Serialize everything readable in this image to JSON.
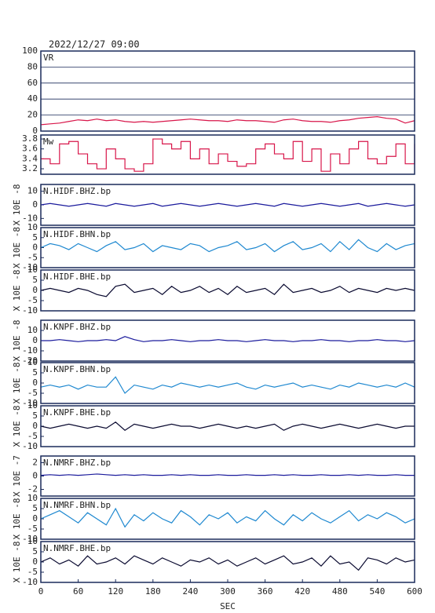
{
  "title": "2022/12/27 09:00",
  "chart_data": [
    {
      "type": "line",
      "label": "VR",
      "color": "#d8164a",
      "grid": true,
      "xlim": [
        0,
        600
      ],
      "ylim": [
        0,
        100
      ],
      "yticks": [
        0,
        20,
        40,
        60,
        80,
        100
      ],
      "x": [
        0,
        15,
        30,
        45,
        60,
        75,
        90,
        105,
        120,
        135,
        150,
        165,
        180,
        195,
        210,
        225,
        240,
        255,
        270,
        285,
        300,
        315,
        330,
        345,
        360,
        375,
        390,
        405,
        420,
        435,
        450,
        465,
        480,
        495,
        510,
        525,
        540,
        555,
        570,
        585,
        600
      ],
      "values": [
        8,
        9,
        10,
        12,
        14,
        13,
        15,
        13,
        14,
        12,
        11,
        12,
        11,
        12,
        13,
        14,
        15,
        14,
        13,
        13,
        12,
        14,
        13,
        13,
        12,
        11,
        14,
        15,
        13,
        12,
        12,
        11,
        13,
        14,
        16,
        17,
        18,
        16,
        15,
        10,
        13
      ]
    },
    {
      "type": "line",
      "label": "Mw",
      "color": "#d8164a",
      "drawstyle": "steps",
      "xlim": [
        0,
        600
      ],
      "ylim": [
        3.09,
        3.88
      ],
      "yticks": [
        3.2,
        3.4,
        3.6,
        3.8
      ],
      "x": [
        0,
        15,
        30,
        45,
        60,
        75,
        90,
        105,
        120,
        135,
        150,
        165,
        180,
        195,
        210,
        225,
        240,
        255,
        270,
        285,
        300,
        315,
        330,
        345,
        360,
        375,
        390,
        405,
        420,
        435,
        450,
        465,
        480,
        495,
        510,
        525,
        540,
        555,
        570,
        585,
        600
      ],
      "values": [
        3.4,
        3.3,
        3.7,
        3.75,
        3.5,
        3.3,
        3.2,
        3.6,
        3.4,
        3.2,
        3.15,
        3.3,
        3.8,
        3.7,
        3.6,
        3.75,
        3.4,
        3.6,
        3.3,
        3.5,
        3.35,
        3.25,
        3.3,
        3.6,
        3.7,
        3.5,
        3.4,
        3.75,
        3.35,
        3.6,
        3.15,
        3.5,
        3.3,
        3.6,
        3.75,
        3.4,
        3.3,
        3.45,
        3.7,
        3.3,
        3.7
      ]
    },
    {
      "type": "line",
      "label": "N.HIDF.BHZ.bp",
      "ylabel": "X 10E -8",
      "color": "#1a1a9c",
      "xlim": [
        0,
        600
      ],
      "ylim": [
        -15,
        15
      ],
      "yticks": [
        10,
        0,
        -10
      ],
      "x": [
        0,
        15,
        30,
        45,
        60,
        75,
        90,
        105,
        120,
        135,
        150,
        165,
        180,
        195,
        210,
        225,
        240,
        255,
        270,
        285,
        300,
        315,
        330,
        345,
        360,
        375,
        390,
        405,
        420,
        435,
        450,
        465,
        480,
        495,
        510,
        525,
        540,
        555,
        570,
        585,
        600
      ],
      "values": [
        0,
        1,
        0,
        -1,
        0,
        1,
        0,
        -1,
        1,
        0,
        -1,
        0,
        1,
        -1,
        0,
        1,
        0,
        -1,
        0,
        1,
        0,
        -1,
        0,
        1,
        0,
        -1,
        1,
        0,
        -1,
        0,
        1,
        0,
        -1,
        0,
        1,
        -1,
        0,
        1,
        0,
        -1,
        0
      ]
    },
    {
      "type": "line",
      "label": "N.HIDF.BHN.bp",
      "ylabel": "X 10E -8",
      "color": "#1e88d0",
      "xlim": [
        0,
        600
      ],
      "ylim": [
        -10,
        10
      ],
      "yticks": [
        10,
        5,
        0,
        -5,
        -10
      ],
      "x": [
        0,
        15,
        30,
        45,
        60,
        75,
        90,
        105,
        120,
        135,
        150,
        165,
        180,
        195,
        210,
        225,
        240,
        255,
        270,
        285,
        300,
        315,
        330,
        345,
        360,
        375,
        390,
        405,
        420,
        435,
        450,
        465,
        480,
        495,
        510,
        525,
        540,
        555,
        570,
        585,
        600
      ],
      "values": [
        0,
        2,
        1,
        -1,
        2,
        0,
        -2,
        1,
        3,
        -1,
        0,
        2,
        -2,
        1,
        0,
        -1,
        2,
        1,
        -2,
        0,
        1,
        3,
        -1,
        0,
        2,
        -2,
        1,
        3,
        -1,
        0,
        2,
        -2,
        3,
        -1,
        4,
        0,
        -2,
        2,
        -1,
        1,
        2
      ]
    },
    {
      "type": "line",
      "label": "N.HIDF.BHE.bp",
      "ylabel": "X 10E -8",
      "color": "#0a0a30",
      "xlim": [
        0,
        600
      ],
      "ylim": [
        -10,
        10
      ],
      "yticks": [
        10,
        5,
        0,
        -5,
        -10
      ],
      "x": [
        0,
        15,
        30,
        45,
        60,
        75,
        90,
        105,
        120,
        135,
        150,
        165,
        180,
        195,
        210,
        225,
        240,
        255,
        270,
        285,
        300,
        315,
        330,
        345,
        360,
        375,
        390,
        405,
        420,
        435,
        450,
        465,
        480,
        495,
        510,
        525,
        540,
        555,
        570,
        585,
        600
      ],
      "values": [
        0,
        1,
        0,
        -1,
        1,
        0,
        -2,
        -3,
        2,
        3,
        -1,
        0,
        1,
        -2,
        2,
        -1,
        0,
        2,
        -1,
        1,
        -2,
        2,
        -1,
        0,
        1,
        -2,
        3,
        -1,
        0,
        1,
        -1,
        0,
        2,
        -1,
        1,
        0,
        -1,
        1,
        0,
        1,
        0
      ]
    },
    {
      "type": "line",
      "label": "N.KNPF.BHZ.bp",
      "ylabel": "X 10E -8",
      "color": "#1a1a9c",
      "xlim": [
        0,
        600
      ],
      "ylim": [
        -20,
        20
      ],
      "yticks": [
        10,
        0,
        -10,
        -20
      ],
      "x": [
        0,
        15,
        30,
        45,
        60,
        75,
        90,
        105,
        120,
        135,
        150,
        165,
        180,
        195,
        210,
        225,
        240,
        255,
        270,
        285,
        300,
        315,
        330,
        345,
        360,
        375,
        390,
        405,
        420,
        435,
        450,
        465,
        480,
        495,
        510,
        525,
        540,
        555,
        570,
        585,
        600
      ],
      "values": [
        0,
        0,
        1,
        0,
        -1,
        0,
        0,
        1,
        0,
        4,
        1,
        -1,
        0,
        0,
        1,
        0,
        -1,
        0,
        0,
        1,
        0,
        0,
        -1,
        0,
        1,
        0,
        0,
        -1,
        0,
        0,
        1,
        0,
        0,
        -1,
        0,
        0,
        1,
        0,
        0,
        -1,
        0
      ]
    },
    {
      "type": "line",
      "label": "N.KNPF.BHN.bp",
      "ylabel": "X 10E -8",
      "color": "#1e88d0",
      "xlim": [
        0,
        600
      ],
      "ylim": [
        -10,
        10
      ],
      "yticks": [
        10,
        5,
        0,
        -5,
        -10
      ],
      "x": [
        0,
        15,
        30,
        45,
        60,
        75,
        90,
        105,
        120,
        135,
        150,
        165,
        180,
        195,
        210,
        225,
        240,
        255,
        270,
        285,
        300,
        315,
        330,
        345,
        360,
        375,
        390,
        405,
        420,
        435,
        450,
        465,
        480,
        495,
        510,
        525,
        540,
        555,
        570,
        585,
        600
      ],
      "values": [
        -2,
        -1,
        -2,
        -1,
        -3,
        -1,
        -2,
        -2,
        3,
        -5,
        -1,
        -2,
        -3,
        -1,
        -2,
        0,
        -1,
        -2,
        -1,
        -2,
        -1,
        0,
        -2,
        -3,
        -1,
        -2,
        -1,
        0,
        -2,
        -1,
        -2,
        -3,
        -1,
        -2,
        0,
        -1,
        -2,
        -1,
        -2,
        0,
        -2
      ]
    },
    {
      "type": "line",
      "label": "N.KNPF.BHE.bp",
      "ylabel": "X 10E -8",
      "color": "#0a0a30",
      "xlim": [
        0,
        600
      ],
      "ylim": [
        -10,
        10
      ],
      "yticks": [
        10,
        5,
        0,
        -5,
        -10
      ],
      "x": [
        0,
        15,
        30,
        45,
        60,
        75,
        90,
        105,
        120,
        135,
        150,
        165,
        180,
        195,
        210,
        225,
        240,
        255,
        270,
        285,
        300,
        315,
        330,
        345,
        360,
        375,
        390,
        405,
        420,
        435,
        450,
        465,
        480,
        495,
        510,
        525,
        540,
        555,
        570,
        585,
        600
      ],
      "values": [
        0,
        -1,
        0,
        1,
        0,
        -1,
        0,
        -1,
        2,
        -2,
        1,
        0,
        -1,
        0,
        1,
        0,
        0,
        -1,
        0,
        1,
        0,
        -1,
        0,
        -1,
        0,
        1,
        -2,
        0,
        1,
        0,
        -1,
        0,
        1,
        0,
        -1,
        0,
        1,
        0,
        -1,
        0,
        0
      ]
    },
    {
      "type": "line",
      "label": "N.NMRF.BHZ.bp",
      "ylabel": "X 10E -7",
      "color": "#1a1a9c",
      "xlim": [
        0,
        600
      ],
      "ylim": [
        -3,
        3
      ],
      "yticks": [
        2,
        0,
        -2
      ],
      "x": [
        0,
        15,
        30,
        45,
        60,
        75,
        90,
        105,
        120,
        135,
        150,
        165,
        180,
        195,
        210,
        225,
        240,
        255,
        270,
        285,
        300,
        315,
        330,
        345,
        360,
        375,
        390,
        405,
        420,
        435,
        450,
        465,
        480,
        495,
        510,
        525,
        540,
        555,
        570,
        585,
        600
      ],
      "values": [
        0.1,
        0.2,
        0.1,
        0.2,
        0.1,
        0.2,
        0.3,
        0.2,
        0.1,
        0.2,
        0.1,
        0.2,
        0.1,
        0.1,
        0.2,
        0.1,
        0.2,
        0.1,
        0.1,
        0.2,
        0.1,
        0.1,
        0.2,
        0.1,
        0.1,
        0.2,
        0.1,
        0.2,
        0.1,
        0.1,
        0.2,
        0.1,
        0.1,
        0.2,
        0.1,
        0.2,
        0.1,
        0.1,
        0.2,
        0.1,
        0.1
      ]
    },
    {
      "type": "line",
      "label": "N.NMRF.BHN.bp",
      "ylabel": "X 10E -8",
      "color": "#1e88d0",
      "xlim": [
        0,
        600
      ],
      "ylim": [
        -10,
        10
      ],
      "yticks": [
        10,
        5,
        0,
        -5,
        -10
      ],
      "x": [
        0,
        15,
        30,
        45,
        60,
        75,
        90,
        105,
        120,
        135,
        150,
        165,
        180,
        195,
        210,
        225,
        240,
        255,
        270,
        285,
        300,
        315,
        330,
        345,
        360,
        375,
        390,
        405,
        420,
        435,
        450,
        465,
        480,
        495,
        510,
        525,
        540,
        555,
        570,
        585,
        600
      ],
      "values": [
        0,
        2,
        4,
        1,
        -2,
        3,
        0,
        -3,
        5,
        -4,
        2,
        -1,
        3,
        0,
        -2,
        4,
        1,
        -3,
        2,
        0,
        3,
        -2,
        1,
        -1,
        4,
        0,
        -3,
        2,
        -1,
        3,
        0,
        -2,
        1,
        4,
        -1,
        2,
        0,
        3,
        1,
        -2,
        0
      ]
    },
    {
      "type": "line",
      "label": "N.NMRF.BHE.bp",
      "ylabel": "X 10E -8",
      "color": "#0a0a30",
      "xlim": [
        0,
        600
      ],
      "ylim": [
        -10,
        10
      ],
      "yticks": [
        10,
        5,
        0,
        -5,
        -10
      ],
      "xticks": [
        0,
        60,
        120,
        180,
        240,
        300,
        360,
        420,
        480,
        540,
        600
      ],
      "xlabel": "SEC",
      "x": [
        0,
        15,
        30,
        45,
        60,
        75,
        90,
        105,
        120,
        135,
        150,
        165,
        180,
        195,
        210,
        225,
        240,
        255,
        270,
        285,
        300,
        315,
        330,
        345,
        360,
        375,
        390,
        405,
        420,
        435,
        450,
        465,
        480,
        495,
        510,
        525,
        540,
        555,
        570,
        585,
        600
      ],
      "values": [
        0,
        2,
        -1,
        1,
        -2,
        3,
        -1,
        0,
        2,
        -1,
        3,
        1,
        -1,
        2,
        0,
        -2,
        1,
        0,
        2,
        -1,
        1,
        -2,
        0,
        2,
        -1,
        1,
        3,
        -1,
        0,
        2,
        -2,
        3,
        -1,
        0,
        -4,
        2,
        1,
        -1,
        2,
        0,
        1
      ]
    }
  ]
}
